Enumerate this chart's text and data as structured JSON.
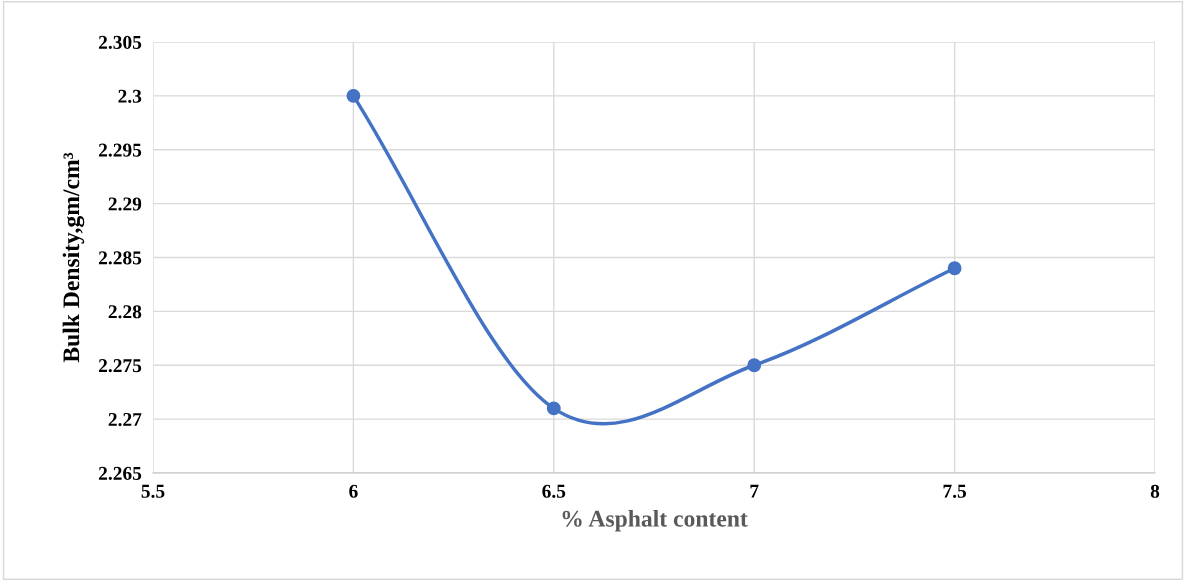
{
  "chart_data": {
    "type": "line",
    "xlabel": "% Asphalt content",
    "ylabel": "Bulk Density,gm/cm³",
    "series": [
      {
        "color": "#4472c4",
        "x": [
          6,
          6.5,
          7,
          7.5
        ],
        "values": [
          2.3,
          2.271,
          2.275,
          2.284
        ]
      }
    ],
    "xlim": [
      5.5,
      8
    ],
    "xticks": [
      5.5,
      6,
      6.5,
      7,
      7.5,
      8
    ],
    "ylim": [
      2.265,
      2.305
    ],
    "yticks": [
      2.265,
      2.27,
      2.275,
      2.28,
      2.285,
      2.29,
      2.295,
      2.3,
      2.305
    ],
    "grid": true,
    "marker": "circle",
    "line_style": "solid",
    "legend": false
  }
}
